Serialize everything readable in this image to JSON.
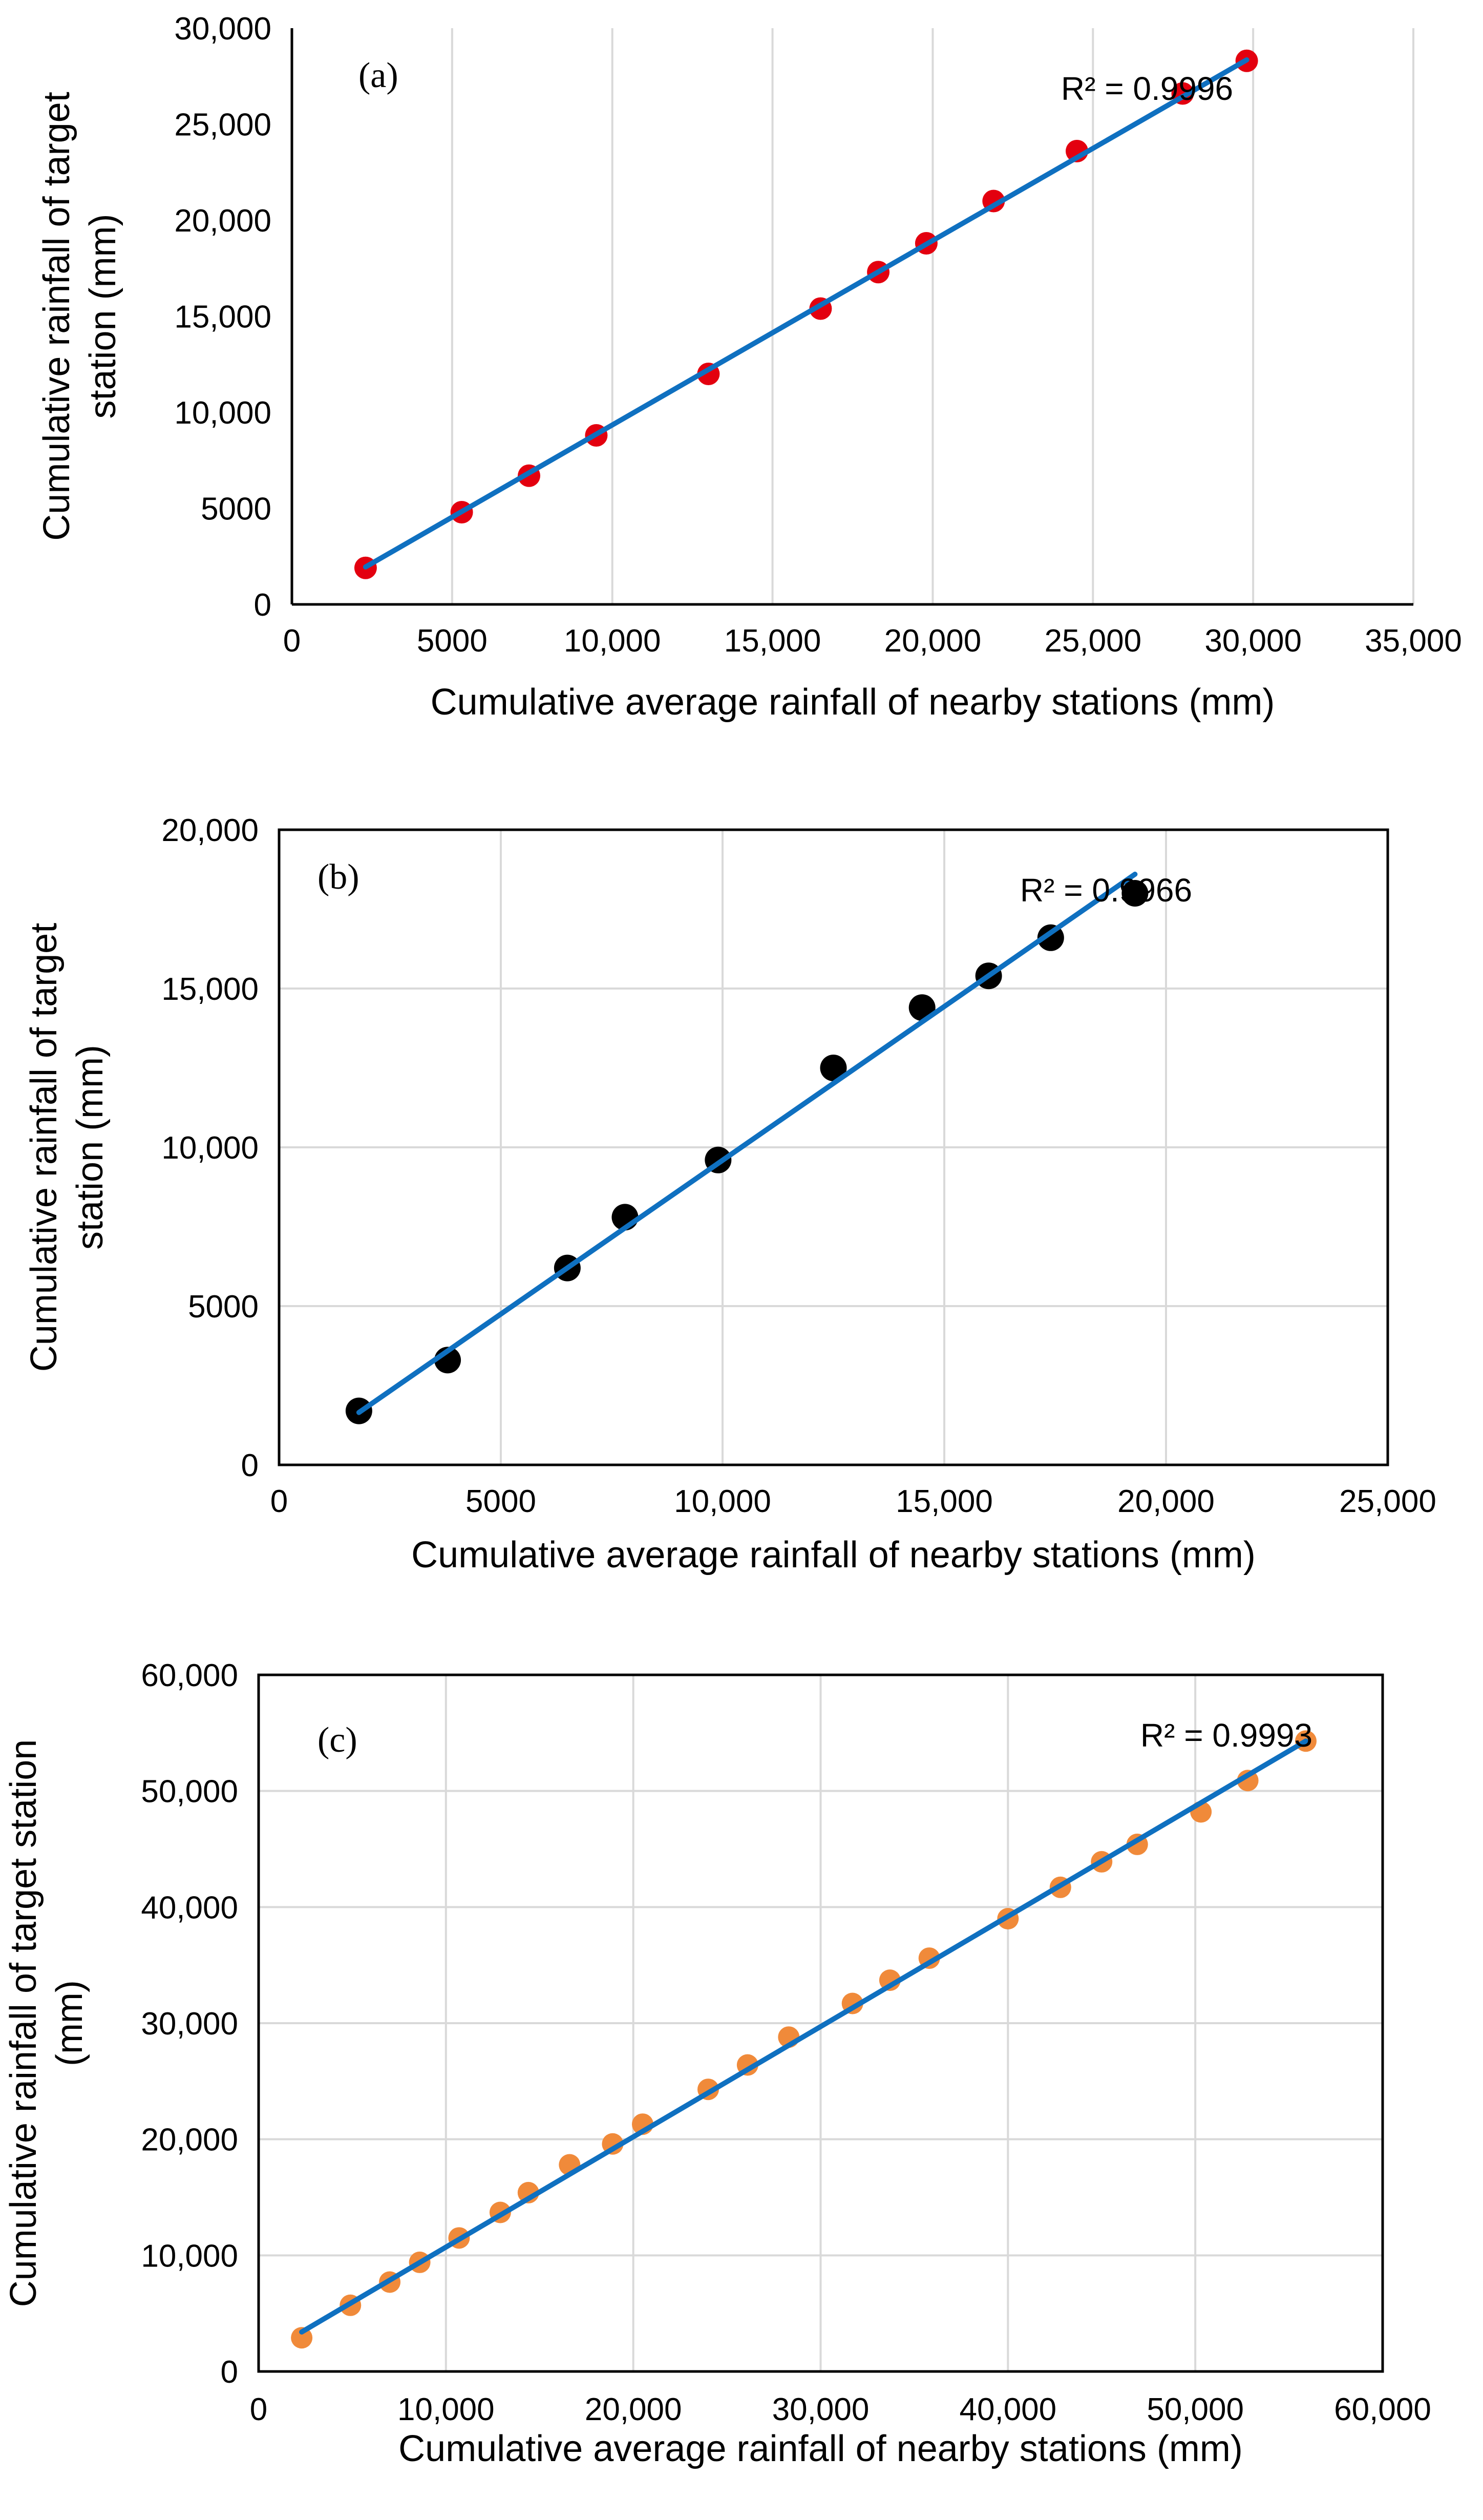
{
  "chart_data": [
    {
      "type": "scatter",
      "panel_label": "(a)",
      "xlabel": "Cumulative average rainfall of nearby stations (mm)",
      "ylabel_lines": [
        "Cumulative rainfall of target",
        "station (mm)"
      ],
      "xlim": [
        0,
        35000
      ],
      "ylim": [
        0,
        30000
      ],
      "x_ticks": [
        0,
        5000,
        10000,
        15000,
        20000,
        25000,
        30000,
        35000
      ],
      "x_tick_labels": [
        "0",
        "5000",
        "10,000",
        "15,000",
        "20,000",
        "25,000",
        "30,000",
        "35,000"
      ],
      "y_ticks": [
        0,
        5000,
        10000,
        15000,
        20000,
        25000,
        30000
      ],
      "y_tick_labels": [
        "0",
        "5000",
        "10,000",
        "15,000",
        "20,000",
        "25,000",
        "30,000"
      ],
      "grid": "vertical",
      "marker_color": "#e3000f",
      "trendline_color": "#0f70c0",
      "r2_label": "R² = 0.9996",
      "series": [
        {
          "x": [
            2300,
            5300,
            7400,
            9500,
            13000,
            16500,
            18300,
            19800,
            21900,
            24500,
            27800,
            29800
          ],
          "y": [
            1900,
            4800,
            6700,
            8800,
            12000,
            15400,
            17300,
            18800,
            21000,
            23600,
            26600,
            28300
          ]
        }
      ],
      "trendline": {
        "x": [
          2300,
          29800
        ],
        "y": [
          1950,
          28350
        ]
      }
    },
    {
      "type": "scatter",
      "panel_label": "(b)",
      "xlabel": "Cumulative average rainfall of nearby stations (mm)",
      "ylabel_lines": [
        "Cumulative rainfall of target",
        "station (mm)"
      ],
      "xlim": [
        0,
        25000
      ],
      "ylim": [
        0,
        20000
      ],
      "x_ticks": [
        0,
        5000,
        10000,
        15000,
        20000,
        25000
      ],
      "x_tick_labels": [
        "0",
        "5000",
        "10,000",
        "15,000",
        "20,000",
        "25,000"
      ],
      "y_ticks": [
        0,
        5000,
        10000,
        15000,
        20000
      ],
      "y_tick_labels": [
        "0",
        "5000",
        "10,000",
        "15,000",
        "20,000"
      ],
      "grid": "both",
      "marker_color": "#000000",
      "trendline_color": "#0f70c0",
      "r2_label": "R² = 0.9966",
      "series": [
        {
          "x": [
            1800,
            3800,
            6500,
            7800,
            9900,
            12500,
            14500,
            16000,
            17400,
            19300
          ],
          "y": [
            1700,
            3300,
            6200,
            7800,
            9600,
            12500,
            14400,
            15400,
            16600,
            18000
          ]
        }
      ],
      "trendline": {
        "x": [
          1800,
          19300
        ],
        "y": [
          1650,
          18600
        ]
      }
    },
    {
      "type": "scatter",
      "panel_label": "(c)",
      "xlabel": "Cumulative average rainfall of nearby stations (mm)",
      "ylabel_lines": [
        "Cumulative rainfall of target station",
        "(mm)"
      ],
      "xlim": [
        0,
        60000
      ],
      "ylim": [
        0,
        60000
      ],
      "x_ticks": [
        0,
        10000,
        20000,
        30000,
        40000,
        50000,
        60000
      ],
      "x_tick_labels": [
        "0",
        "10,000",
        "20,000",
        "30,000",
        "40,000",
        "50,000",
        "60,000"
      ],
      "y_ticks": [
        0,
        10000,
        20000,
        30000,
        40000,
        50000,
        60000
      ],
      "y_tick_labels": [
        "0",
        "10,000",
        "20,000",
        "30,000",
        "40,000",
        "50,000",
        "60,000"
      ],
      "grid": "both",
      "marker_color": "#f08a3a",
      "trendline_color": "#0f70c0",
      "r2_label": "R² = 0.9993",
      "series": [
        {
          "x": [
            2300,
            4900,
            7000,
            8600,
            10700,
            12900,
            14400,
            16600,
            18900,
            20500,
            24000,
            26100,
            28300,
            31700,
            33700,
            35800,
            40000,
            42800,
            45000,
            46900,
            50300,
            52800,
            55900
          ],
          "y": [
            2900,
            5700,
            7700,
            9400,
            11500,
            13700,
            15400,
            17800,
            19600,
            21300,
            24300,
            26400,
            28800,
            31700,
            33700,
            35600,
            39000,
            41700,
            43900,
            45400,
            48200,
            50900,
            54300
          ]
        }
      ],
      "trendline": {
        "x": [
          2300,
          55900
        ],
        "y": [
          3400,
          54300
        ]
      }
    }
  ]
}
